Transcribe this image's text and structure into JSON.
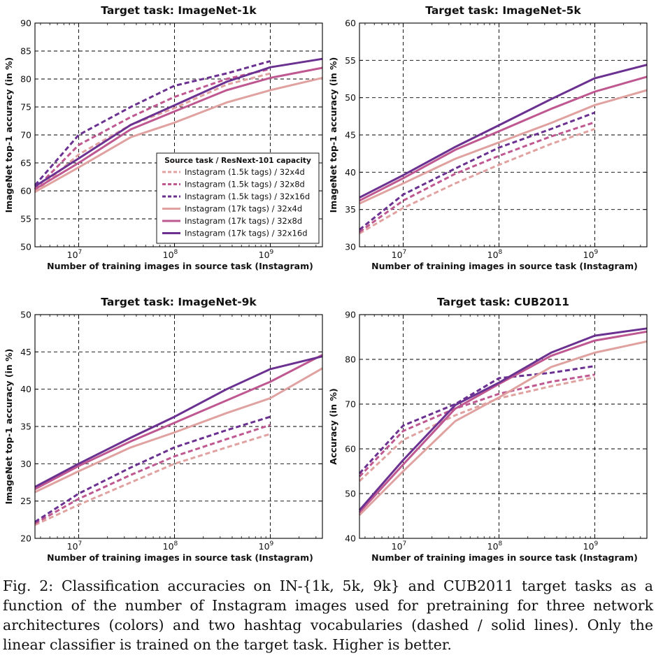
{
  "caption": "Fig. 2: Classification accuracies on IN-{1k, 5k, 9k} and CUB2011 target tasks as a function of the number of Instagram images used for pretraining for three network architectures (colors) and two hashtag vocabularies (dashed / solid lines). Only the linear classifier is trained on the target task. Higher is better.",
  "colors": {
    "32x4d": "#e0a2a0",
    "32x8d": "#bf5890",
    "32x16d": "#6b3191"
  },
  "legend": {
    "title": "Source task / ResNext-101 capacity",
    "entries": [
      {
        "label": "Instagram (1.5k tags) / 32x4d",
        "style": "dashed",
        "color_key": "32x4d"
      },
      {
        "label": "Instagram (1.5k tags) / 32x8d",
        "style": "dashed",
        "color_key": "32x8d"
      },
      {
        "label": "Instagram (1.5k tags) / 32x16d",
        "style": "dashed",
        "color_key": "32x16d"
      },
      {
        "label": "Instagram (17k tags) / 32x4d",
        "style": "solid",
        "color_key": "32x4d"
      },
      {
        "label": "Instagram (17k tags) / 32x8d",
        "style": "solid",
        "color_key": "32x8d"
      },
      {
        "label": "Instagram (17k tags) / 32x16d",
        "style": "solid",
        "color_key": "32x16d"
      }
    ]
  },
  "chart_data": [
    {
      "type": "line",
      "title": "Target task: ImageNet-1k",
      "xlabel": "Number of training images in source task (Instagram)",
      "ylabel": "ImageNet top-1 accuracy (in %)",
      "xscale": "log",
      "xlim": [
        3500000,
        3500000000
      ],
      "ylim": [
        50,
        90
      ],
      "yticks": [
        50,
        55,
        60,
        65,
        70,
        75,
        80,
        85,
        90
      ],
      "xticks": [
        10000000,
        100000000,
        1000000000
      ],
      "xtick_labels": [
        {
          "base": "10",
          "exp": "7"
        },
        {
          "base": "10",
          "exp": "8"
        },
        {
          "base": "10",
          "exp": "9"
        }
      ],
      "grid": true,
      "legend_position": "lower-right",
      "series": [
        {
          "legend_index": 0,
          "x": [
            3500000,
            10000000,
            35000000,
            100000000,
            350000000,
            1000000000
          ],
          "y": [
            59.8,
            66.5,
            71.8,
            74.8,
            79.0,
            81.0
          ]
        },
        {
          "legend_index": 1,
          "x": [
            3500000,
            10000000,
            35000000,
            100000000,
            350000000,
            1000000000
          ],
          "y": [
            60.3,
            68.2,
            73.2,
            76.8,
            80.0,
            81.8
          ]
        },
        {
          "legend_index": 2,
          "x": [
            3500000,
            10000000,
            35000000,
            100000000,
            350000000,
            1000000000
          ],
          "y": [
            61.0,
            70.0,
            75.0,
            78.8,
            81.0,
            83.2
          ]
        },
        {
          "legend_index": 3,
          "x": [
            3500000,
            10000000,
            35000000,
            100000000,
            350000000,
            1000000000,
            3500000000
          ],
          "y": [
            59.8,
            64.2,
            69.6,
            72.2,
            75.8,
            78.0,
            80.2
          ]
        },
        {
          "legend_index": 4,
          "x": [
            3500000,
            10000000,
            35000000,
            100000000,
            350000000,
            1000000000,
            3500000000
          ],
          "y": [
            60.3,
            65.0,
            71.0,
            74.2,
            78.0,
            80.2,
            82.0
          ]
        },
        {
          "legend_index": 5,
          "x": [
            3500000,
            10000000,
            35000000,
            100000000,
            350000000,
            1000000000,
            3500000000
          ],
          "y": [
            60.8,
            65.8,
            71.8,
            75.3,
            79.5,
            82.1,
            83.6
          ]
        }
      ]
    },
    {
      "type": "line",
      "title": "Target task: ImageNet-5k",
      "xlabel": "Number of training images in source task (Instagram)",
      "ylabel": "ImageNet top-1 accuracy (in %)",
      "xscale": "log",
      "xlim": [
        3500000,
        3500000000
      ],
      "ylim": [
        30,
        60
      ],
      "yticks": [
        30,
        35,
        40,
        45,
        50,
        55,
        60
      ],
      "xticks": [
        10000000,
        100000000,
        1000000000
      ],
      "xtick_labels": [
        {
          "base": "10",
          "exp": "7"
        },
        {
          "base": "10",
          "exp": "8"
        },
        {
          "base": "10",
          "exp": "9"
        }
      ],
      "grid": true,
      "series": [
        {
          "legend_index": 0,
          "x": [
            3500000,
            10000000,
            35000000,
            100000000,
            350000000,
            1000000000
          ],
          "y": [
            31.8,
            35.2,
            38.5,
            41.0,
            43.8,
            45.8
          ]
        },
        {
          "legend_index": 1,
          "x": [
            3500000,
            10000000,
            35000000,
            100000000,
            350000000,
            1000000000
          ],
          "y": [
            32.0,
            36.2,
            39.8,
            42.2,
            44.8,
            46.7
          ]
        },
        {
          "legend_index": 2,
          "x": [
            3500000,
            10000000,
            35000000,
            100000000,
            350000000,
            1000000000
          ],
          "y": [
            32.3,
            37.0,
            40.5,
            43.3,
            45.8,
            48.0
          ]
        },
        {
          "legend_index": 3,
          "x": [
            3500000,
            10000000,
            35000000,
            100000000,
            350000000,
            1000000000,
            3500000000
          ],
          "y": [
            35.8,
            38.5,
            41.8,
            44.0,
            46.6,
            49.0,
            51.0
          ]
        },
        {
          "legend_index": 4,
          "x": [
            3500000,
            10000000,
            35000000,
            100000000,
            350000000,
            1000000000,
            3500000000
          ],
          "y": [
            36.2,
            39.2,
            43.0,
            45.5,
            48.5,
            50.8,
            52.8
          ]
        },
        {
          "legend_index": 5,
          "x": [
            3500000,
            10000000,
            35000000,
            100000000,
            350000000,
            1000000000,
            3500000000
          ],
          "y": [
            36.6,
            39.6,
            43.4,
            46.3,
            49.8,
            52.6,
            54.4
          ]
        }
      ]
    },
    {
      "type": "line",
      "title": "Target task: ImageNet-9k",
      "xlabel": "Number of training images in source task (Instagram)",
      "ylabel": "ImageNet top-1 accuracy (in %)",
      "xscale": "log",
      "xlim": [
        3500000,
        3500000000
      ],
      "ylim": [
        20,
        50
      ],
      "yticks": [
        20,
        25,
        30,
        35,
        40,
        45,
        50
      ],
      "xticks": [
        10000000,
        100000000,
        1000000000
      ],
      "xtick_labels": [
        {
          "base": "10",
          "exp": "7"
        },
        {
          "base": "10",
          "exp": "8"
        },
        {
          "base": "10",
          "exp": "9"
        }
      ],
      "grid": true,
      "series": [
        {
          "legend_index": 0,
          "x": [
            3500000,
            10000000,
            35000000,
            100000000,
            350000000,
            1000000000
          ],
          "y": [
            21.8,
            24.5,
            27.5,
            30.0,
            32.2,
            34.0
          ]
        },
        {
          "legend_index": 1,
          "x": [
            3500000,
            10000000,
            35000000,
            100000000,
            350000000,
            1000000000
          ],
          "y": [
            22.0,
            25.3,
            28.5,
            31.0,
            33.3,
            35.2
          ]
        },
        {
          "legend_index": 2,
          "x": [
            3500000,
            10000000,
            35000000,
            100000000,
            350000000,
            1000000000
          ],
          "y": [
            22.2,
            26.0,
            29.5,
            32.2,
            34.5,
            36.3
          ]
        },
        {
          "legend_index": 3,
          "x": [
            3500000,
            10000000,
            35000000,
            100000000,
            350000000,
            1000000000,
            3500000000
          ],
          "y": [
            26.2,
            29.0,
            32.2,
            34.2,
            36.8,
            38.8,
            42.8
          ]
        },
        {
          "legend_index": 4,
          "x": [
            3500000,
            10000000,
            35000000,
            100000000,
            350000000,
            1000000000,
            3500000000
          ],
          "y": [
            26.6,
            29.7,
            33.0,
            35.5,
            38.5,
            41.0,
            44.6
          ]
        },
        {
          "legend_index": 5,
          "x": [
            3500000,
            10000000,
            35000000,
            100000000,
            350000000,
            1000000000,
            3500000000
          ],
          "y": [
            26.9,
            30.0,
            33.5,
            36.3,
            40.0,
            42.7,
            44.4
          ]
        }
      ]
    },
    {
      "type": "line",
      "title": "Target task: CUB2011",
      "xlabel": "Number of training images in source task (Instagram)",
      "ylabel": "Accuracy (in %)",
      "xscale": "log",
      "xlim": [
        3500000,
        3500000000
      ],
      "ylim": [
        40,
        90
      ],
      "yticks": [
        40,
        50,
        60,
        70,
        80,
        90
      ],
      "xticks": [
        10000000,
        100000000,
        1000000000
      ],
      "xtick_labels": [
        {
          "base": "10",
          "exp": "7"
        },
        {
          "base": "10",
          "exp": "8"
        },
        {
          "base": "10",
          "exp": "9"
        }
      ],
      "grid": true,
      "series": [
        {
          "legend_index": 0,
          "x": [
            3500000,
            10000000,
            35000000,
            100000000,
            350000000,
            1000000000
          ],
          "y": [
            52.8,
            62.0,
            67.5,
            71.3,
            74.0,
            76.0
          ]
        },
        {
          "legend_index": 1,
          "x": [
            3500000,
            10000000,
            35000000,
            100000000,
            350000000,
            1000000000
          ],
          "y": [
            53.8,
            64.0,
            69.0,
            72.3,
            75.0,
            76.6
          ]
        },
        {
          "legend_index": 2,
          "x": [
            3500000,
            10000000,
            35000000,
            100000000,
            350000000,
            1000000000
          ],
          "y": [
            54.5,
            65.2,
            70.0,
            75.8,
            77.0,
            78.5
          ]
        },
        {
          "legend_index": 3,
          "x": [
            3500000,
            10000000,
            35000000,
            100000000,
            350000000,
            1000000000,
            3500000000
          ],
          "y": [
            45.2,
            55.0,
            66.2,
            71.5,
            78.3,
            81.5,
            84.0
          ]
        },
        {
          "legend_index": 4,
          "x": [
            3500000,
            10000000,
            35000000,
            100000000,
            350000000,
            1000000000,
            3500000000
          ],
          "y": [
            45.8,
            56.5,
            69.0,
            74.5,
            80.8,
            84.2,
            86.2
          ]
        },
        {
          "legend_index": 5,
          "x": [
            3500000,
            10000000,
            35000000,
            100000000,
            350000000,
            1000000000,
            3500000000
          ],
          "y": [
            46.3,
            57.5,
            69.8,
            74.8,
            81.5,
            85.3,
            86.9
          ]
        }
      ]
    }
  ]
}
